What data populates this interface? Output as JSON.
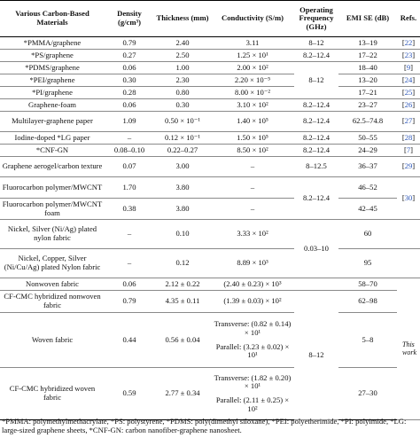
{
  "headers": {
    "material": "Various Carbon-Based Materials",
    "density": "Density (g/cm³)",
    "thickness": "Thickness (mm)",
    "conductivity": "Conductivity (S/m)",
    "frequency": "Operating Frequency (GHz)",
    "emi": "EMI SE (dB)",
    "refs": "Refs."
  },
  "rows": [
    {
      "material": "*PMMA/graphene",
      "density": "0.79",
      "thickness": "2.40",
      "conductivity": "3.11",
      "frequency": "8–12",
      "emi": "13–19",
      "ref": "22"
    },
    {
      "material": "*PS/graphene",
      "density": "0.27",
      "thickness": "2.50",
      "conductivity": "1.25 × 10¹",
      "frequency": "8.2–12.4",
      "emi": "17–22",
      "ref": "23"
    },
    {
      "material": "*PDMS/graphene",
      "density": "0.06",
      "thickness": "1.00",
      "conductivity": "2.00 × 10²",
      "frequency": "8–12",
      "emi": "18–40",
      "ref": "9"
    },
    {
      "material": "*PEI/graphene",
      "density": "0.30",
      "thickness": "2.30",
      "conductivity": "2.20 × 10⁻⁵",
      "frequency": "",
      "emi": "13–20",
      "ref": "24"
    },
    {
      "material": "*PI/graphene",
      "density": "0.28",
      "thickness": "0.80",
      "conductivity": "8.00 × 10⁻²",
      "frequency": "",
      "emi": "17–21",
      "ref": "25"
    },
    {
      "material": "Graphene-foam",
      "density": "0.06",
      "thickness": "0.30",
      "conductivity": "3.10 × 10²",
      "frequency": "8.2–12.4",
      "emi": "23–27",
      "ref": "26"
    },
    {
      "material": "Multilayer-graphene paper",
      "density": "1.09",
      "thickness": "0.50 × 10⁻¹",
      "conductivity": "1.40 × 10⁵",
      "frequency": "8.2–12.4",
      "emi": "62.5–74.8",
      "ref": "27"
    },
    {
      "material": "Iodine-doped *LG paper",
      "density": "–",
      "thickness": "0.12 × 10⁻¹",
      "conductivity": "1.50 × 10⁵",
      "frequency": "8.2–12.4",
      "emi": "50–55",
      "ref": "28"
    },
    {
      "material": "*CNF-GN",
      "density": "0.08–0.10",
      "thickness": "0.22–0.27",
      "conductivity": "8.50 × 10²",
      "frequency": "8.2–12.4",
      "emi": "24–29",
      "ref": "7"
    },
    {
      "material": "Graphene aerogel/carbon texture",
      "density": "0.07",
      "thickness": "3.00",
      "conductivity": "–",
      "frequency": "8–12.5",
      "emi": "36–37",
      "ref": "29"
    },
    {
      "material": "Fluorocarbon polymer/MWCNT",
      "density": "1.70",
      "thickness": "3.80",
      "conductivity": "–",
      "frequency": "8.2–12.4",
      "emi": "46–52",
      "ref": "30"
    },
    {
      "material": "Fluorocarbon polymer/MWCNT foam",
      "density": "0.38",
      "thickness": "3.80",
      "conductivity": "–",
      "frequency": "",
      "emi": "42–45",
      "ref": ""
    },
    {
      "material": "Nickel, Silver (Ni/Ag) plated nylon fabric",
      "density": "–",
      "thickness": "0.10",
      "conductivity": "3.33 × 10²",
      "frequency": "0.03–10",
      "emi": "60",
      "ref": ""
    },
    {
      "material": "Nickel, Copper, Silver (Ni/Cu/Ag) plated Nylon fabric",
      "density": "–",
      "thickness": "0.12",
      "conductivity": "8.89 × 10³",
      "frequency": "",
      "emi": "95",
      "ref": ""
    },
    {
      "material": "Nonwoven fabric",
      "density": "0.06",
      "thickness": "2.12 ± 0.22",
      "conductivity": "(2.40 ± 0.23) × 10³",
      "frequency": "",
      "emi": "58–70",
      "ref": ""
    },
    {
      "material": "CF-CMC hybridized nonwoven fabric",
      "density": "0.79",
      "thickness": "4.35 ± 0.11",
      "conductivity": "(1.39 ± 0.03) × 10²",
      "frequency": "8–12",
      "emi": "62–98",
      "ref": ""
    },
    {
      "material": "Woven fabric",
      "density": "0.44",
      "thickness": "0.56 ± 0.04",
      "conductivity_a": "Transverse: (0.82 ± 0.14) × 10¹",
      "conductivity_b": "Parallel: (3.23 ± 0.02) × 10¹",
      "frequency": "",
      "emi": "5–8",
      "ref": "This work"
    },
    {
      "material": "CF-CMC hybridized woven fabric",
      "density": "0.59",
      "thickness": "2.77 ± 0.34",
      "conductivity_a": "Transverse: (1.82 ± 0.20) × 10¹",
      "conductivity_b": "Parallel: (2.11 ± 0.25) × 10²",
      "frequency": "",
      "emi": "27–30",
      "ref": ""
    }
  ],
  "footnote": "*PMMA: polymethylmethacrylate, *PS: polystyrene, *PDMS: poly(dimethyl siloxane), *PEI: polyetherimide, *PI: polyimide, *LG: large-sized graphene sheets, *CNF-GN: carbon nanofiber-graphene nanosheet."
}
